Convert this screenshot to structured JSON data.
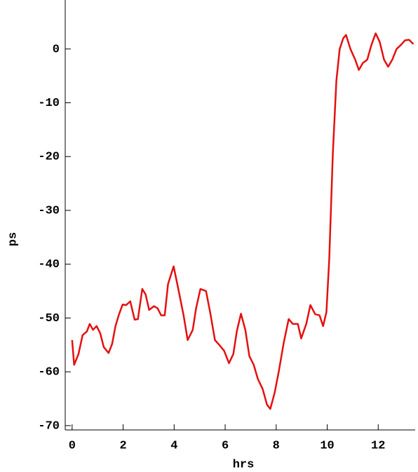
{
  "chart_data": {
    "type": "line",
    "x_label": "hrs",
    "y_label": "ps",
    "x": [
      0,
      0.08,
      0.25,
      0.41,
      0.58,
      0.69,
      0.82,
      0.96,
      1.1,
      1.24,
      1.43,
      1.57,
      1.7,
      1.84,
      1.98,
      2.12,
      2.28,
      2.45,
      2.58,
      2.75,
      2.88,
      3.02,
      3.21,
      3.35,
      3.49,
      3.63,
      3.76,
      3.98,
      4.15,
      4.37,
      4.53,
      4.73,
      4.86,
      5.03,
      5.25,
      5.41,
      5.6,
      5.77,
      5.96,
      6.15,
      6.32,
      6.46,
      6.62,
      6.79,
      6.95,
      7.12,
      7.28,
      7.47,
      7.64,
      7.77,
      7.94,
      8.1,
      8.3,
      8.49,
      8.65,
      8.85,
      8.98,
      9.18,
      9.34,
      9.53,
      9.7,
      9.84,
      9.97,
      10.08,
      10.22,
      10.36,
      10.49,
      10.63,
      10.74,
      10.91,
      11.1,
      11.24,
      11.4,
      11.57,
      11.73,
      11.9,
      12.06,
      12.23,
      12.39,
      12.55,
      12.72,
      12.88,
      13.05,
      13.21,
      13.38
    ],
    "series": [
      {
        "color": "#e41010",
        "values": [
          -54.1,
          -58.7,
          -56.7,
          -53.2,
          -52.5,
          -51.1,
          -52.2,
          -51.5,
          -52.8,
          -55.4,
          -56.5,
          -54.8,
          -51.5,
          -49.3,
          -47.5,
          -47.6,
          -46.9,
          -50.3,
          -50.2,
          -44.6,
          -45.6,
          -48.5,
          -47.8,
          -48.2,
          -49.5,
          -49.5,
          -43.7,
          -40.4,
          -44.3,
          -49.5,
          -54.1,
          -52.2,
          -48.2,
          -44.6,
          -45.0,
          -48.9,
          -54.1,
          -55.0,
          -56.1,
          -58.4,
          -56.7,
          -52.4,
          -49.2,
          -52.2,
          -57.1,
          -58.7,
          -61.3,
          -63.2,
          -66.1,
          -66.9,
          -63.9,
          -60.0,
          -54.5,
          -50.2,
          -51.1,
          -51.1,
          -53.8,
          -51.1,
          -47.6,
          -49.3,
          -49.5,
          -51.5,
          -48.9,
          -39.1,
          -19.6,
          -5.9,
          0,
          2.0,
          2.6,
          0,
          -2.0,
          -3.9,
          -2.6,
          -2.0,
          0.7,
          2.9,
          1.3,
          -2.0,
          -3.3,
          -2.0,
          0,
          0.7,
          1.6,
          1.7,
          0.9
        ]
      }
    ],
    "xlim": [
      -0.27,
      13.45
    ],
    "ylim": [
      -70.8,
      9.1
    ],
    "xticks": [
      0,
      2,
      4,
      6,
      8,
      10,
      12
    ],
    "yticks": [
      0,
      -10,
      -20,
      -30,
      -40,
      -50,
      -60,
      -70
    ]
  }
}
